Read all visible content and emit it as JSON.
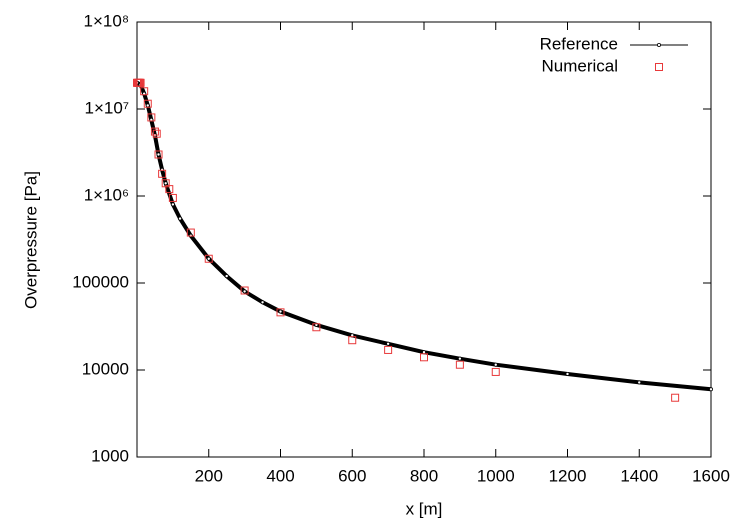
{
  "chart_data": {
    "type": "line",
    "xlabel": "x [m]",
    "ylabel": "Overpressure [Pa]",
    "xlim": [
      0,
      1600
    ],
    "xticks": [
      200,
      400,
      600,
      800,
      1000,
      1200,
      1400,
      1600
    ],
    "ylim": [
      1000,
      100000000
    ],
    "ylog": true,
    "yticks": [
      1000,
      10000,
      100000,
      {
        "value": 1000000,
        "label": "1×10⁶"
      },
      {
        "value": 10000000,
        "label": "1×10⁷"
      },
      {
        "value": 100000000,
        "label": "1×10⁸"
      }
    ],
    "legend": "top-right",
    "series": [
      {
        "name": "Reference",
        "color": "#000000",
        "style": "line",
        "x": [
          0,
          10,
          20,
          30,
          40,
          50,
          60,
          70,
          80,
          100,
          120,
          150,
          200,
          250,
          300,
          350,
          400,
          500,
          600,
          700,
          800,
          900,
          1000,
          1200,
          1400,
          1600
        ],
        "values": [
          20000000,
          19000000,
          15000000,
          11000000,
          7500000,
          5000000,
          3000000,
          2000000,
          1400000,
          800000,
          550000,
          350000,
          190000,
          120000,
          80000,
          60000,
          47000,
          33000,
          25000,
          20000,
          16000,
          13500,
          11500,
          9000,
          7200,
          6000
        ]
      },
      {
        "name": "Numerical",
        "color": "#e8393a",
        "style": "points",
        "x": [
          0,
          2,
          4,
          6,
          8,
          10,
          20,
          30,
          40,
          50,
          55,
          60,
          70,
          80,
          90,
          100,
          150,
          200,
          300,
          400,
          500,
          600,
          700,
          800,
          900,
          1000,
          1500
        ],
        "values": [
          20000000,
          20000000,
          20000000,
          20000000,
          20000000,
          20000000,
          16000000,
          11500000,
          8000000,
          5500000,
          5200000,
          3000000,
          1800000,
          1400000,
          1200000,
          950000,
          380000,
          190000,
          82000,
          46000,
          31000,
          22000,
          17000,
          14000,
          11500,
          9500,
          4800
        ]
      }
    ]
  }
}
